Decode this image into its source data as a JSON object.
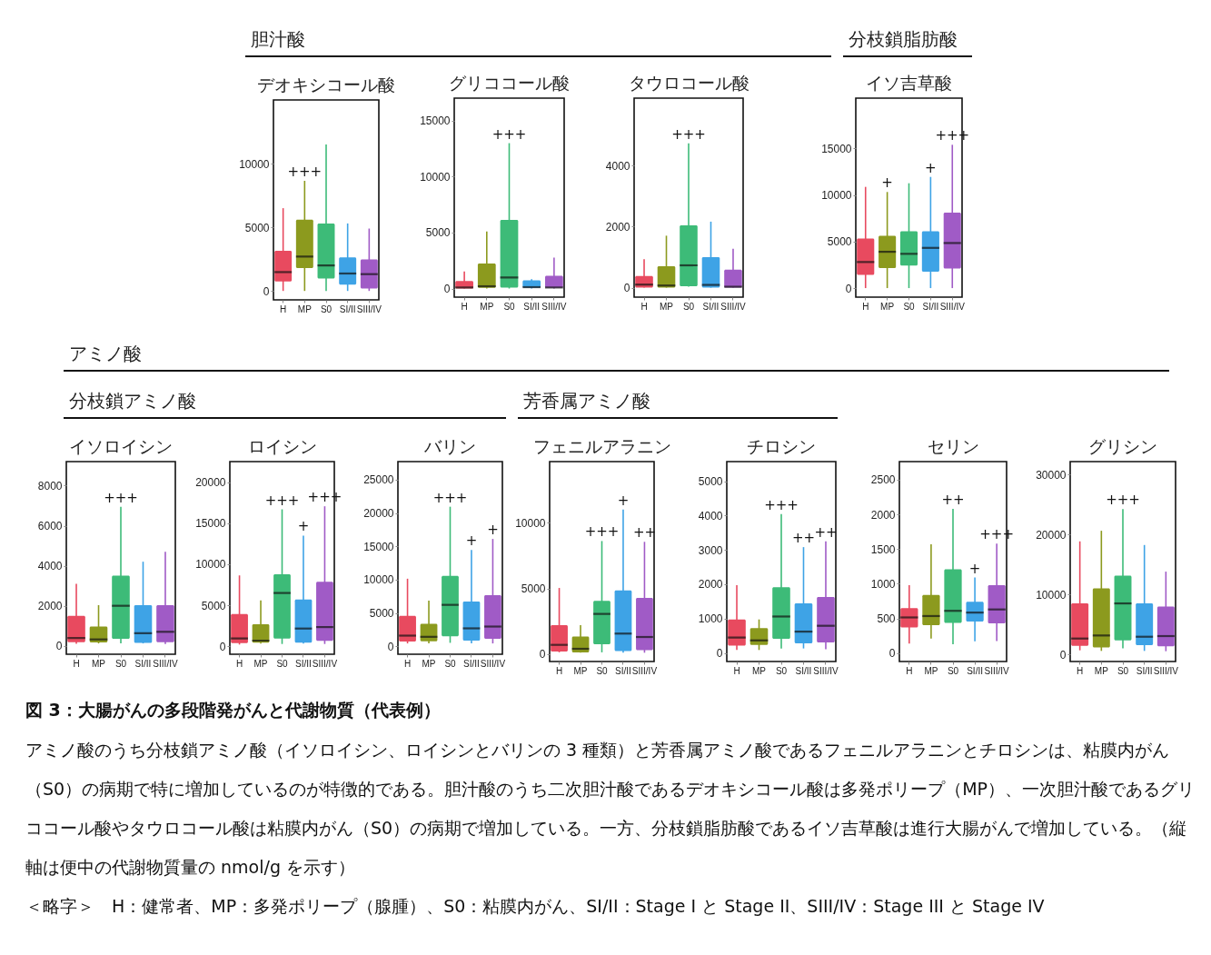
{
  "chart_data": [
    {
      "type": "box",
      "title": "デオキシコール酸",
      "categories": [
        "H",
        "MP",
        "S0",
        "SI/II",
        "SIII/IV"
      ],
      "colors": [
        "#e84a5f",
        "#8c9a1e",
        "#3dbb78",
        "#3ea3e6",
        "#a05bc6"
      ],
      "ylim": [
        -700,
        15000
      ],
      "yticks": [
        0,
        5000,
        10000
      ],
      "boxes": [
        {
          "low": 0,
          "q1": 750,
          "median": 1480,
          "q3": 3150,
          "high": 6500
        },
        {
          "low": 0,
          "q1": 1800,
          "median": 2700,
          "q3": 5600,
          "high": 8650
        },
        {
          "low": 0,
          "q1": 970,
          "median": 2000,
          "q3": 5300,
          "high": 11500
        },
        {
          "low": 0,
          "q1": 500,
          "median": 1370,
          "q3": 2630,
          "high": 5300
        },
        {
          "low": 0,
          "q1": 200,
          "median": 1320,
          "q3": 2470,
          "high": 4900
        }
      ],
      "annotations": [
        "胆汁酸",
        {
          "text": "+++",
          "x": "MP",
          "y": 8650
        }
      ]
    },
    {
      "type": "box",
      "title": "グリココール酸",
      "categories": [
        "H",
        "MP",
        "S0",
        "SI/II",
        "SIII/IV"
      ],
      "colors": [
        "#e84a5f",
        "#8c9a1e",
        "#3dbb78",
        "#3ea3e6",
        "#a05bc6"
      ],
      "ylim": [
        -770,
        17000
      ],
      "yticks": [
        0,
        5000,
        10000,
        15000
      ],
      "boxes": [
        {
          "low": 0,
          "q1": 0,
          "median": 90,
          "q3": 670,
          "high": 1530
        },
        {
          "low": 0,
          "q1": 60,
          "median": 200,
          "q3": 2240,
          "high": 5100
        },
        {
          "low": 0,
          "q1": 90,
          "median": 980,
          "q3": 6130,
          "high": 12980
        },
        {
          "low": 0,
          "q1": 60,
          "median": 120,
          "q3": 740,
          "high": 830
        },
        {
          "low": 0,
          "q1": 60,
          "median": 90,
          "q3": 1130,
          "high": 2760
        }
      ],
      "annotations": [
        {
          "text": "+++",
          "x": "S0",
          "y": 12980
        }
      ]
    },
    {
      "type": "box",
      "title": "タウロコール酸",
      "categories": [
        "H",
        "MP",
        "S0",
        "SI/II",
        "SIII/IV"
      ],
      "colors": [
        "#e84a5f",
        "#8c9a1e",
        "#3dbb78",
        "#3ea3e6",
        "#a05bc6"
      ],
      "ylim": [
        -310,
        6200
      ],
      "yticks": [
        0,
        2000,
        4000
      ],
      "boxes": [
        {
          "low": 0,
          "q1": 0,
          "median": 100,
          "q3": 380,
          "high": 930
        },
        {
          "low": 0,
          "q1": 0,
          "median": 70,
          "q3": 700,
          "high": 1700
        },
        {
          "low": 30,
          "q1": 45,
          "median": 730,
          "q3": 2040,
          "high": 4720
        },
        {
          "low": 0,
          "q1": 0,
          "median": 90,
          "q3": 1000,
          "high": 2160
        },
        {
          "low": 0,
          "q1": 0,
          "median": 30,
          "q3": 590,
          "high": 1270
        }
      ],
      "annotations": [
        {
          "text": "+++",
          "x": "S0",
          "y": 4720
        }
      ]
    },
    {
      "type": "box",
      "title": "イソ吉草酸",
      "categories": [
        "H",
        "MP",
        "S0",
        "SI/II",
        "SIII/IV"
      ],
      "colors": [
        "#e84a5f",
        "#8c9a1e",
        "#3dbb78",
        "#3ea3e6",
        "#a05bc6"
      ],
      "ylim": [
        -970,
        20400
      ],
      "yticks": [
        0,
        5000,
        10000,
        15000
      ],
      "boxes": [
        {
          "low": 0,
          "q1": 1420,
          "median": 2800,
          "q3": 5320,
          "high": 10870
        },
        {
          "low": 0,
          "q1": 2160,
          "median": 3900,
          "q3": 5610,
          "high": 10320
        },
        {
          "low": 0,
          "q1": 2420,
          "median": 3680,
          "q3": 6100,
          "high": 11260
        },
        {
          "low": 0,
          "q1": 1770,
          "median": 4320,
          "q3": 6100,
          "high": 11940
        },
        {
          "low": 0,
          "q1": 2100,
          "median": 4840,
          "q3": 8100,
          "high": 15390
        }
      ],
      "annotations": [
        "分枝鎖脂肪酸",
        {
          "text": "+",
          "x": "MP",
          "y": 10320
        },
        {
          "text": "+",
          "x": "SI/II",
          "y": 11940
        },
        {
          "text": "+++",
          "x": "SIII/IV",
          "y": 15390
        }
      ]
    },
    {
      "type": "box",
      "title": "イソロイシン",
      "categories": [
        "H",
        "MP",
        "S0",
        "SI/II",
        "SIII/IV"
      ],
      "colors": [
        "#e84a5f",
        "#8c9a1e",
        "#3dbb78",
        "#3ea3e6",
        "#a05bc6"
      ],
      "ylim": [
        -420,
        9200
      ],
      "yticks": [
        0,
        2000,
        4000,
        6000,
        8000
      ],
      "boxes": [
        {
          "low": 100,
          "q1": 180,
          "median": 390,
          "q3": 1500,
          "high": 3100
        },
        {
          "low": 120,
          "q1": 170,
          "median": 320,
          "q3": 960,
          "high": 2030
        },
        {
          "low": 120,
          "q1": 350,
          "median": 2000,
          "q3": 3510,
          "high": 6940
        },
        {
          "low": 120,
          "q1": 150,
          "median": 630,
          "q3": 2030,
          "high": 4200
        },
        {
          "low": 90,
          "q1": 180,
          "median": 700,
          "q3": 2030,
          "high": 4700
        }
      ],
      "annotations": [
        "アミノ酸",
        "分枝鎖アミノ酸",
        {
          "text": "+++",
          "x": "S0",
          "y": 6940
        }
      ]
    },
    {
      "type": "box",
      "title": "ロイシン",
      "categories": [
        "H",
        "MP",
        "S0",
        "SI/II",
        "SIII/IV"
      ],
      "colors": [
        "#e84a5f",
        "#8c9a1e",
        "#3dbb78",
        "#3ea3e6",
        "#a05bc6"
      ],
      "ylim": [
        -960,
        22500
      ],
      "yticks": [
        0,
        5000,
        10000,
        15000,
        20000
      ],
      "boxes": [
        {
          "low": 220,
          "q1": 400,
          "median": 960,
          "q3": 3930,
          "high": 8640
        },
        {
          "low": 330,
          "q1": 440,
          "median": 700,
          "q3": 2680,
          "high": 5590
        },
        {
          "low": 290,
          "q1": 960,
          "median": 6500,
          "q3": 8790,
          "high": 16690
        },
        {
          "low": 330,
          "q1": 440,
          "median": 2170,
          "q3": 5700,
          "high": 13490
        },
        {
          "low": 290,
          "q1": 660,
          "median": 2350,
          "q3": 7870,
          "high": 17060
        }
      ],
      "annotations": [
        {
          "text": "+++",
          "x": "S0",
          "y": 16690
        },
        {
          "text": "+",
          "x": "SI/II",
          "y": 13490
        },
        {
          "text": "+++",
          "x": "SIII/IV",
          "y": 17060
        }
      ]
    },
    {
      "type": "box",
      "title": "バリン",
      "categories": [
        "H",
        "MP",
        "S0",
        "SI/II",
        "SIII/IV"
      ],
      "colors": [
        "#e84a5f",
        "#8c9a1e",
        "#3dbb78",
        "#3ea3e6",
        "#a05bc6"
      ],
      "ylim": [
        -1170,
        27700
      ],
      "yticks": [
        0,
        5000,
        10000,
        15000,
        20000,
        25000
      ],
      "boxes": [
        {
          "low": 450,
          "q1": 720,
          "median": 1620,
          "q3": 4600,
          "high": 10150
        },
        {
          "low": 450,
          "q1": 770,
          "median": 1440,
          "q3": 3380,
          "high": 6860
        },
        {
          "low": 540,
          "q1": 1530,
          "median": 6230,
          "q3": 10560,
          "high": 20940
        },
        {
          "low": 450,
          "q1": 860,
          "median": 2710,
          "q3": 6720,
          "high": 14440
        },
        {
          "low": 450,
          "q1": 1130,
          "median": 2980,
          "q3": 7670,
          "high": 16110
        }
      ],
      "annotations": [
        {
          "text": "+++",
          "x": "S0",
          "y": 20940
        },
        {
          "text": "+",
          "x": "SI/II",
          "y": 14440
        },
        {
          "text": "+",
          "x": "SIII/IV",
          "y": 16110
        }
      ]
    },
    {
      "type": "box",
      "title": "フェニルアラニン",
      "categories": [
        "H",
        "MP",
        "S0",
        "SI/II",
        "SIII/IV"
      ],
      "colors": [
        "#e84a5f",
        "#8c9a1e",
        "#3dbb78",
        "#3ea3e6",
        "#a05bc6"
      ],
      "ylim": [
        -580,
        14670
      ],
      "yticks": [
        0,
        5000,
        10000
      ],
      "boxes": [
        {
          "low": 120,
          "q1": 180,
          "median": 690,
          "q3": 2190,
          "high": 5030
        },
        {
          "low": 90,
          "q1": 120,
          "median": 390,
          "q3": 1320,
          "high": 2190
        },
        {
          "low": 120,
          "q1": 740,
          "median": 3050,
          "q3": 4040,
          "high": 8610
        },
        {
          "low": 90,
          "q1": 210,
          "median": 1550,
          "q3": 4850,
          "high": 11020
        },
        {
          "low": 90,
          "q1": 280,
          "median": 1290,
          "q3": 4270,
          "high": 8550
        }
      ],
      "annotations": [
        "芳香属アミノ酸",
        {
          "text": "+++",
          "x": "S0",
          "y": 8610
        },
        {
          "text": "+",
          "x": "SI/II",
          "y": 11020
        },
        {
          "text": "++",
          "x": "SIII/IV",
          "y": 8550
        }
      ]
    },
    {
      "type": "box",
      "title": "チロシン",
      "categories": [
        "H",
        "MP",
        "S0",
        "SI/II",
        "SIII/IV"
      ],
      "colors": [
        "#e84a5f",
        "#8c9a1e",
        "#3dbb78",
        "#3ea3e6",
        "#a05bc6"
      ],
      "ylim": [
        -250,
        5570
      ],
      "yticks": [
        0,
        1000,
        2000,
        3000,
        4000,
        5000
      ],
      "boxes": [
        {
          "low": 85,
          "q1": 210,
          "median": 450,
          "q3": 975,
          "high": 1970
        },
        {
          "low": 85,
          "q1": 230,
          "median": 365,
          "q3": 720,
          "high": 975
        },
        {
          "low": 130,
          "q1": 410,
          "median": 1060,
          "q3": 1910,
          "high": 4040
        },
        {
          "low": 130,
          "q1": 280,
          "median": 620,
          "q3": 1440,
          "high": 3080
        },
        {
          "low": 110,
          "q1": 305,
          "median": 790,
          "q3": 1630,
          "high": 3250
        }
      ],
      "annotations": [
        {
          "text": "+++",
          "x": "S0",
          "y": 4040
        },
        {
          "text": "++",
          "x": "SI/II",
          "y": 3080
        },
        {
          "text": "++",
          "x": "SIII/IV",
          "y": 3250
        }
      ]
    },
    {
      "type": "box",
      "title": "セリン",
      "categories": [
        "H",
        "MP",
        "S0",
        "SI/II",
        "SIII/IV"
      ],
      "colors": [
        "#e84a5f",
        "#8c9a1e",
        "#3dbb78",
        "#3ea3e6",
        "#a05bc6"
      ],
      "ylim": [
        -120,
        2760
      ],
      "yticks": [
        0,
        500,
        1000,
        1500,
        2000,
        2500
      ],
      "boxes": [
        {
          "low": 140,
          "q1": 370,
          "median": 515,
          "q3": 650,
          "high": 980
        },
        {
          "low": 210,
          "q1": 405,
          "median": 535,
          "q3": 840,
          "high": 1570
        },
        {
          "low": 130,
          "q1": 435,
          "median": 610,
          "q3": 1210,
          "high": 2080
        },
        {
          "low": 170,
          "q1": 455,
          "median": 585,
          "q3": 740,
          "high": 1090
        },
        {
          "low": 175,
          "q1": 430,
          "median": 630,
          "q3": 980,
          "high": 1580
        }
      ],
      "annotations": [
        {
          "text": "++",
          "x": "S0",
          "y": 2080
        },
        {
          "text": "+",
          "x": "SI/II",
          "y": 1090
        },
        {
          "text": "+++",
          "x": "SIII/IV",
          "y": 1580
        }
      ]
    },
    {
      "type": "box",
      "title": "グリシン",
      "categories": [
        "H",
        "MP",
        "S0",
        "SI/II",
        "SIII/IV"
      ],
      "colors": [
        "#e84a5f",
        "#8c9a1e",
        "#3dbb78",
        "#3ea3e6",
        "#a05bc6"
      ],
      "ylim": [
        -1210,
        32200
      ],
      "yticks": [
        0,
        10000,
        20000,
        30000
      ],
      "boxes": [
        {
          "low": 660,
          "q1": 1420,
          "median": 2630,
          "q3": 8500,
          "high": 18870
        },
        {
          "low": 560,
          "q1": 1160,
          "median": 3140,
          "q3": 11030,
          "high": 20640
        },
        {
          "low": 1010,
          "q1": 2330,
          "median": 8500,
          "q3": 13150,
          "high": 24280
        },
        {
          "low": 560,
          "q1": 1520,
          "median": 2930,
          "q3": 8500,
          "high": 18260
        },
        {
          "low": 510,
          "q1": 1320,
          "median": 3040,
          "q3": 7990,
          "high": 13810
        }
      ],
      "annotations": [
        {
          "text": "+++",
          "x": "S0",
          "y": 24280
        },
        "図 3：大腸がんの多段階発がんと代謝物質（代表例）",
        "アミノ酸のうち分枝鎖アミノ酸（イソロイシン、ロイシンとバリンの 3 種類）と芳香属アミノ酸であるフェニルアラニンとチロシンは、粘膜内がん（S0）の病期で特に増加しているのが特徴的である。胆汁酸のうち二次胆汁酸であるデオキシコール酸は多発ポリープ（MP）、一次胆汁酸であるグリココール酸やタウロコール酸は粘膜内がん（S0）の病期で増加している。一方、分枝鎖脂肪酸であるイソ吉草酸は進行大腸がんで増加している。（縦軸は便中の代謝物質量の nmol/g を示す）",
        "＜略字＞　H：健常者、MP：多発ポリープ（腺腫）、S0：粘膜内がん、SI/II：Stage I と Stage II、SIII/IV：Stage III と Stage IV"
      ]
    }
  ]
}
